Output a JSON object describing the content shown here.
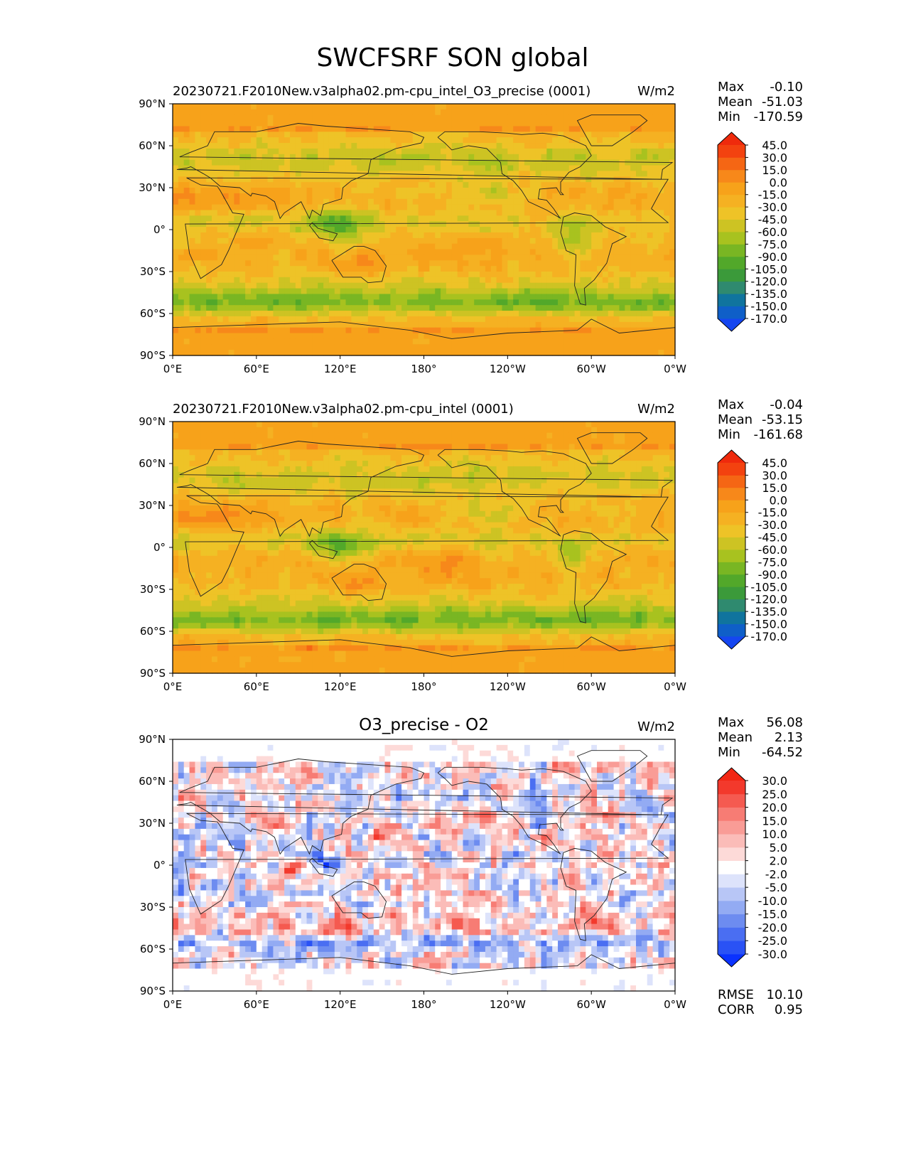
{
  "figure_title": "SWCFSRF SON global",
  "stat_labels": {
    "max": "Max",
    "mean": "Mean",
    "min": "Min",
    "rmse": "RMSE",
    "corr": "CORR"
  },
  "chart_data": [
    {
      "type": "heatmap",
      "projection": "plate-carree",
      "title": "",
      "left_title": "20230721.F2010New.v3alpha02.pm-cpu_intel_O3_precise (0001)",
      "units": "W/m2",
      "xlim": [
        0,
        360
      ],
      "ylim": [
        -90,
        90
      ],
      "x_tick_labels": [
        "0°E",
        "60°E",
        "120°E",
        "180°",
        "120°W",
        "60°W",
        "0°W"
      ],
      "y_tick_labels": [
        "90°N",
        "60°N",
        "30°N",
        "0°",
        "30°S",
        "60°S",
        "90°S"
      ],
      "stats": {
        "max": "-0.10",
        "mean": "-51.03",
        "min": "-170.59"
      },
      "colorbar": {
        "levels": [
          "-170.0",
          "-150.0",
          "-135.0",
          "-120.0",
          "-105.0",
          "-90.0",
          "-75.0",
          "-60.0",
          "-45.0",
          "-30.0",
          "-15.0",
          "0.0",
          "15.0",
          "30.0",
          "45.0"
        ],
        "colors": [
          "#1546f0",
          "#0f5fc8",
          "#10749e",
          "#2f8a6f",
          "#3b9a3a",
          "#52a82a",
          "#79b623",
          "#a8c21f",
          "#cdc323",
          "#eec327",
          "#f5b122",
          "#f7a21a",
          "#f7881a",
          "#f56614",
          "#f3420f",
          "#ef2a0c"
        ],
        "extend": "both"
      }
    },
    {
      "type": "heatmap",
      "projection": "plate-carree",
      "title": "",
      "left_title": "20230721.F2010New.v3alpha02.pm-cpu_intel (0001)",
      "units": "W/m2",
      "xlim": [
        0,
        360
      ],
      "ylim": [
        -90,
        90
      ],
      "x_tick_labels": [
        "0°E",
        "60°E",
        "120°E",
        "180°",
        "120°W",
        "60°W",
        "0°W"
      ],
      "y_tick_labels": [
        "90°N",
        "60°N",
        "30°N",
        "0°",
        "30°S",
        "60°S",
        "90°S"
      ],
      "stats": {
        "max": "-0.04",
        "mean": "-53.15",
        "min": "-161.68"
      },
      "colorbar": {
        "levels": [
          "-170.0",
          "-150.0",
          "-135.0",
          "-120.0",
          "-105.0",
          "-90.0",
          "-75.0",
          "-60.0",
          "-45.0",
          "-30.0",
          "-15.0",
          "0.0",
          "15.0",
          "30.0",
          "45.0"
        ],
        "colors": [
          "#1546f0",
          "#0f5fc8",
          "#10749e",
          "#2f8a6f",
          "#3b9a3a",
          "#52a82a",
          "#79b623",
          "#a8c21f",
          "#cdc323",
          "#eec327",
          "#f5b122",
          "#f7a21a",
          "#f7881a",
          "#f56614",
          "#f3420f",
          "#ef2a0c"
        ],
        "extend": "both"
      }
    },
    {
      "type": "heatmap",
      "projection": "plate-carree",
      "title": "O3_precise - O2",
      "left_title": "",
      "units": "W/m2",
      "xlim": [
        0,
        360
      ],
      "ylim": [
        -90,
        90
      ],
      "x_tick_labels": [
        "0°E",
        "60°E",
        "120°E",
        "180°",
        "120°W",
        "60°W",
        "0°W"
      ],
      "y_tick_labels": [
        "90°N",
        "60°N",
        "30°N",
        "0°",
        "30°S",
        "60°S",
        "90°S"
      ],
      "stats": {
        "max": "56.08",
        "mean": "2.13",
        "min": "-64.52",
        "rmse": "10.10",
        "corr": "0.95"
      },
      "colorbar": {
        "levels": [
          "-30.0",
          "-25.0",
          "-20.0",
          "-15.0",
          "-10.0",
          "-5.0",
          "-2.0",
          "2.0",
          "5.0",
          "10.0",
          "15.0",
          "20.0",
          "25.0",
          "30.0"
        ],
        "colors": [
          "#0a32ff",
          "#2a52f5",
          "#4a6ef2",
          "#6d8cf0",
          "#93abf3",
          "#b8c6f6",
          "#dde3fb",
          "#ffffff",
          "#fddad8",
          "#fbbcb8",
          "#f99c96",
          "#f77c74",
          "#f55a50",
          "#f3392c",
          "#f22613"
        ],
        "extend": "both"
      }
    }
  ]
}
